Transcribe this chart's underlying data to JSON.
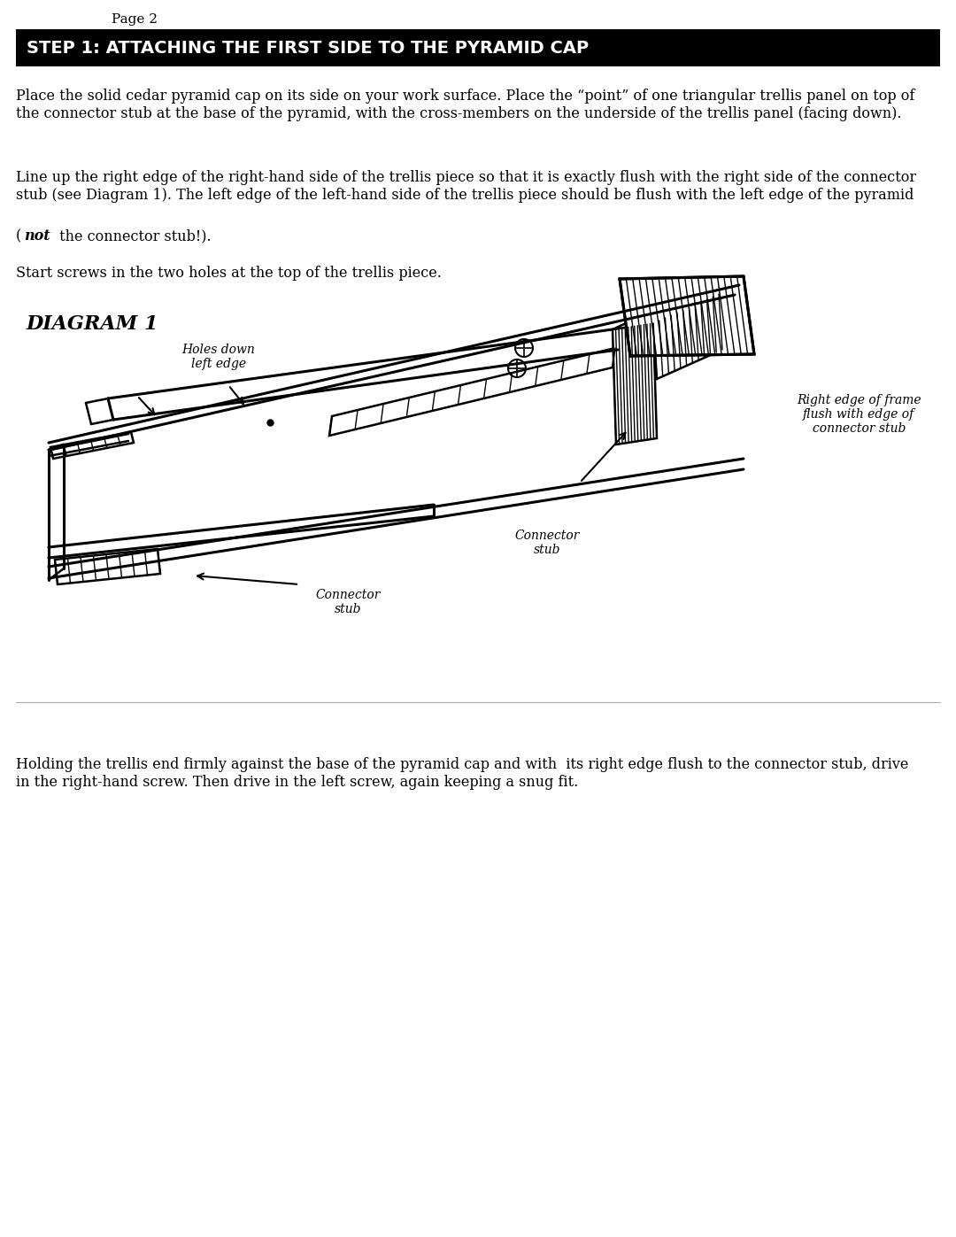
{
  "page_label": "Page 2",
  "title": "STEP 1: ATTACHING THE FIRST SIDE TO THE PYRAMID CAP",
  "title_bg": "#000000",
  "title_fg": "#ffffff",
  "para1": "Place the solid cedar pyramid cap on its side on your work surface. Place the “point” of one triangular trellis panel on top of\nthe connector stub at the base of the pyramid, with the cross-members on the underside of the trellis panel (facing down).",
  "para2_normal1": "Line up the right edge of the right-hand side of the trellis piece so that it is exactly flush with the right side of the connector\nstub (see Diagram 1). The left edge of the left-hand side of the trellis piece should be flush with the left edge of the pyramid",
  "para2_bold": "not",
  "para2_normal2": " the connector stub!).",
  "para3": "Start screws in the two holes at the top of the trellis piece.",
  "diagram_label": "DIAGRAM 1",
  "annotation_holes": "Holes down\nleft edge",
  "annotation_connector1": "Connector\nstub",
  "annotation_connector2": "Connector\nstub",
  "annotation_right": "Right edge of frame\nflush with edge of\nconnector stub",
  "para4": "Holding the trellis end firmly against the base of the pyramid cap and with  its right edge flush to the connector stub, drive\nin the right-hand screw. Then drive in the left screw, again keeping a snug fit.",
  "bg_color": "#ffffff",
  "text_color": "#000000",
  "line_color": "#000000"
}
